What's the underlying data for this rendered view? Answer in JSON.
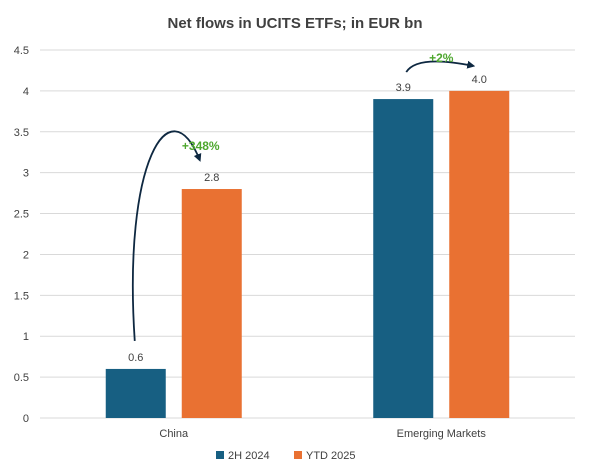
{
  "chart_data": {
    "type": "bar",
    "title": "Net flows in UCITS ETFs; in EUR bn",
    "xlabel": "",
    "ylabel": "",
    "ylim": [
      0,
      4.5
    ],
    "yticks": [
      "0",
      "0.5",
      "1",
      "1.5",
      "2",
      "2.5",
      "3",
      "3.5",
      "4",
      "4.5"
    ],
    "grid": true,
    "legend_position": "bottom",
    "categories": [
      "China",
      "Emerging Markets"
    ],
    "series": [
      {
        "name": "2H 2024",
        "values": [
          0.6,
          3.9
        ],
        "labels": [
          "0.6",
          "3.9"
        ],
        "color": "#175F82"
      },
      {
        "name": "YTD 2025",
        "values": [
          2.8,
          4.0
        ],
        "labels": [
          "2.8",
          "4.0"
        ],
        "color": "#E97132"
      }
    ],
    "annotations": [
      {
        "category": "China",
        "text": "+348%",
        "color": "#4EA72E"
      },
      {
        "category": "Emerging Markets",
        "text": "+2%",
        "color": "#4EA72E"
      }
    ]
  },
  "colors": {
    "text": "#404040",
    "grid": "#D9D9D9",
    "arrow": "#0E2841"
  }
}
